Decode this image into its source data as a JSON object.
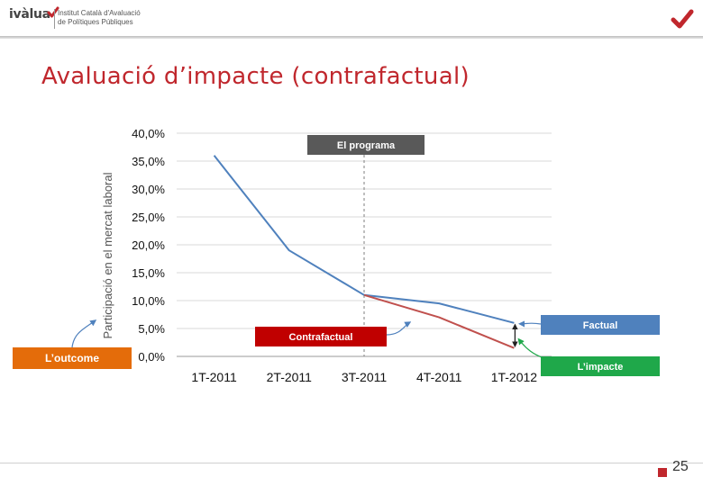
{
  "header": {
    "logo_word": "ivàlua",
    "logo_line1": "Institut Català d'Avaluació",
    "logo_line2": "de Polítiques Públiques",
    "brand_color": "#c0272d"
  },
  "slide": {
    "title": "Avaluació d’impacte (contrafactual)",
    "page_number": "25"
  },
  "chart_data": {
    "type": "line",
    "categories": [
      "1T-2011",
      "2T-2011",
      "3T-2011",
      "4T-2011",
      "1T-2012"
    ],
    "ylabel": "Participació en el mercat laboral",
    "ylim": [
      0,
      40
    ],
    "yticks": [
      "0,0%",
      "5,0%",
      "10,0%",
      "15,0%",
      "20,0%",
      "25,0%",
      "30,0%",
      "35,0%",
      "40,0%"
    ],
    "grid": true,
    "series": [
      {
        "color": "#4f81bd",
        "values": [
          36.0,
          19.0,
          11.0,
          9.5,
          6.0
        ]
      },
      {
        "color": "#c0504d",
        "values": [
          null,
          null,
          11.0,
          7.0,
          1.5
        ]
      }
    ],
    "program_start_category": "3T-2011",
    "annotations": {
      "programa": {
        "label": "El programa",
        "color": "#595959"
      },
      "factual": {
        "label": "Factual",
        "color": "#4f81bd"
      },
      "contrafactual": {
        "label": "Contrafactual",
        "color": "#c00000"
      },
      "impacte": {
        "label": "L’impacte",
        "color": "#1fa84a"
      },
      "outcome": {
        "label": "L’outcome",
        "color": "#e46c0a"
      }
    }
  }
}
